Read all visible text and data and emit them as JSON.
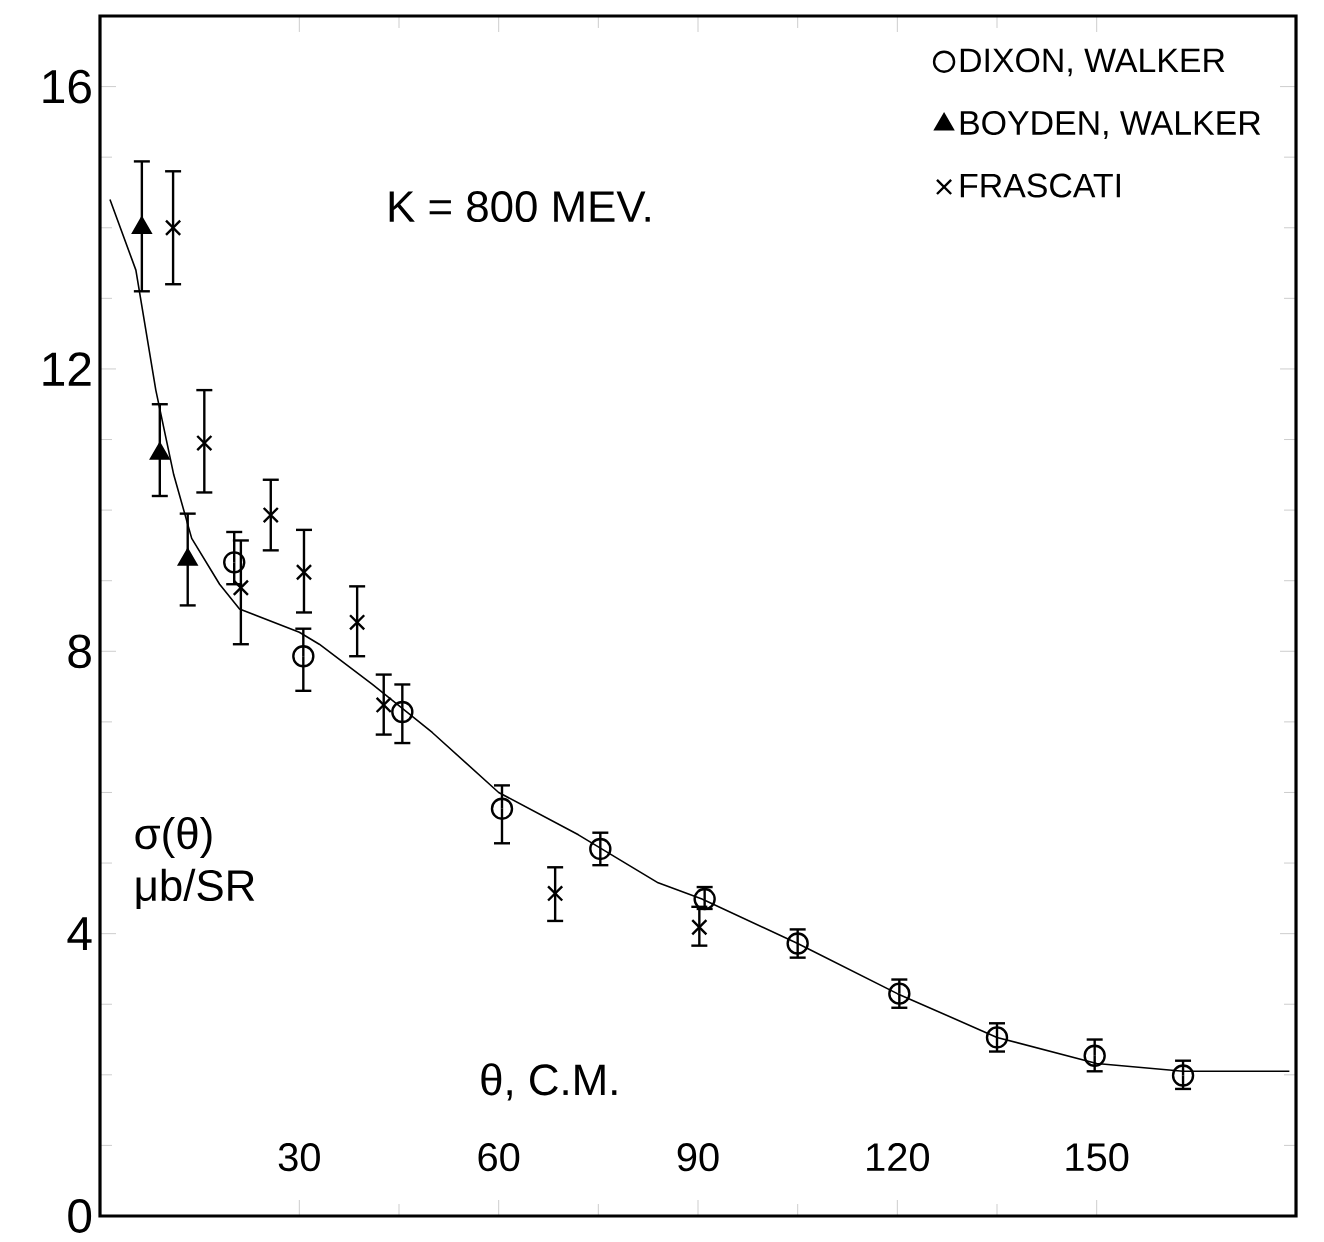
{
  "chart_data": {
    "type": "scatter",
    "xlabel": "θ, C.M.",
    "ylabel": "σ(θ) μb/SR",
    "annotations": [
      "K = 800 MEV."
    ],
    "xlim": [
      0,
      180
    ],
    "ylim": [
      0,
      17
    ],
    "xticks": [
      30,
      60,
      90,
      120,
      150
    ],
    "yticks": [
      0,
      4,
      8,
      12,
      16
    ],
    "legend": "top right",
    "grid": false,
    "series": [
      {
        "name": "DIXON, WALKER",
        "color": "#000000",
        "marker": "circle",
        "x": [
          20.2,
          30.6,
          45.5,
          60.5,
          75.3,
          91,
          105,
          120.3,
          135,
          149.7,
          163
        ],
        "values": [
          9.26,
          7.93,
          7.14,
          5.77,
          5.2,
          4.49,
          3.86,
          3.15,
          2.53,
          2.27,
          1.99
        ],
        "errors": [
          [
            8.95,
            9.69
          ],
          [
            7.44,
            8.32
          ],
          [
            6.7,
            7.53
          ],
          [
            5.28,
            6.1
          ],
          [
            4.97,
            5.43
          ],
          [
            4.35,
            4.66
          ],
          [
            3.66,
            4.06
          ],
          [
            2.95,
            3.35
          ],
          [
            2.33,
            2.73
          ],
          [
            2.05,
            2.5
          ],
          [
            1.8,
            2.2
          ]
        ]
      },
      {
        "name": "BOYDEN, WALKER",
        "color": "#000000",
        "marker": "triangle",
        "x": [
          6.3,
          9,
          13.2
        ],
        "values": [
          14.0,
          10.8,
          9.3
        ],
        "errors": [
          [
            13.1,
            14.94
          ],
          [
            10.2,
            11.5
          ],
          [
            8.65,
            9.95
          ]
        ]
      },
      {
        "name": "FRASCATI",
        "color": "#000000",
        "marker": "cross",
        "x": [
          11,
          15.7,
          21.2,
          25.7,
          30.7,
          38.7,
          42.7,
          68.5,
          90.2
        ],
        "values": [
          14.0,
          10.95,
          8.9,
          9.93,
          9.12,
          8.41,
          7.24,
          4.57,
          4.09
        ],
        "errors": [
          [
            13.2,
            14.8
          ],
          [
            10.25,
            11.7
          ],
          [
            8.1,
            9.57
          ],
          [
            9.43,
            10.43
          ],
          [
            8.55,
            9.72
          ],
          [
            7.93,
            8.92
          ],
          [
            6.82,
            7.67
          ],
          [
            4.18,
            4.94
          ],
          [
            3.83,
            4.38
          ]
        ]
      },
      {
        "type": "line",
        "color": "#000000",
        "marker": "none",
        "x": [
          1.5,
          5.4,
          8.4,
          11.1,
          13.8,
          18,
          21,
          30,
          33,
          41,
          50,
          60,
          72,
          84,
          90.6,
          105,
          120,
          135,
          150,
          163,
          179
        ],
        "values": [
          14.4,
          13.4,
          11.7,
          10.5,
          9.6,
          8.95,
          8.6,
          8.27,
          8.1,
          7.53,
          6.85,
          6.0,
          5.4,
          4.72,
          4.49,
          3.86,
          3.15,
          2.53,
          2.16,
          2.05,
          2.05
        ]
      }
    ]
  }
}
